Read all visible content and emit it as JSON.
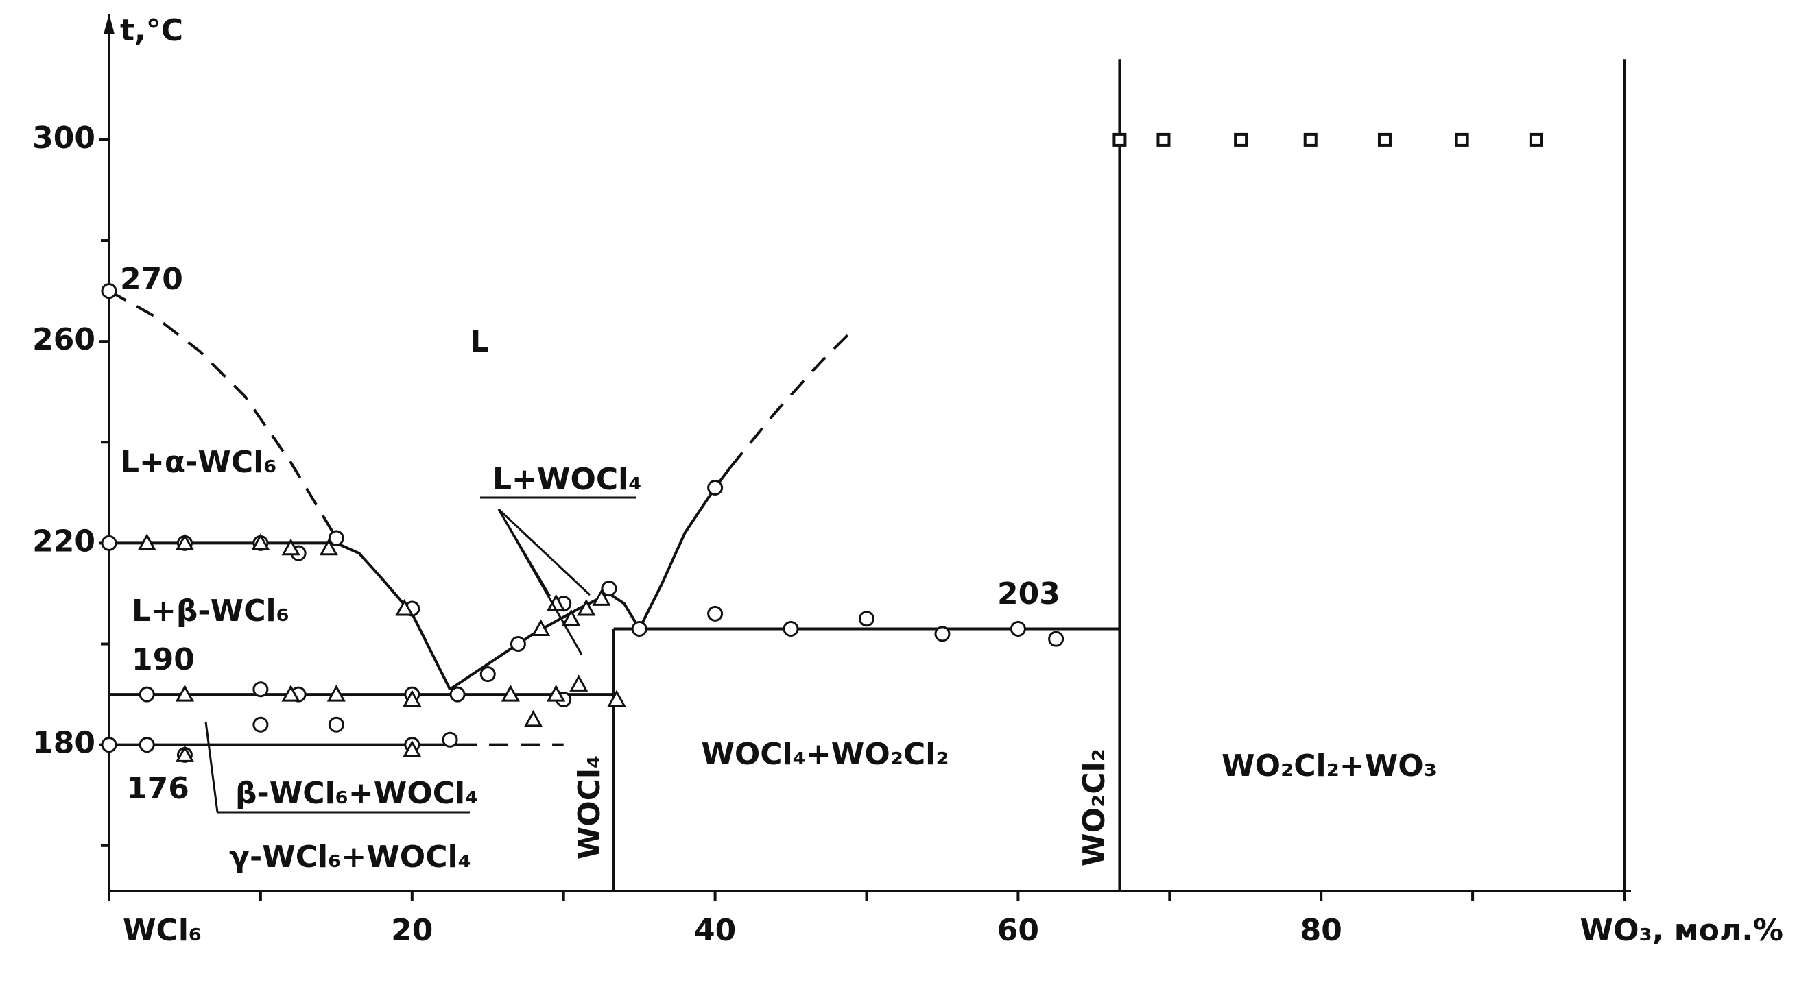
{
  "chart_data": {
    "type": "phase",
    "y_title": "t,°C",
    "xlim": [
      0,
      100
    ],
    "ylim": [
      151,
      325
    ],
    "xticks": [
      {
        "value": 0,
        "label": "WCl₆"
      },
      20,
      40,
      60,
      80,
      {
        "value": 100,
        "label": "WO₃, мол.%"
      }
    ],
    "xminor_ticks": [
      10,
      30,
      50,
      70,
      90
    ],
    "yticks": [
      180,
      220,
      260,
      300
    ],
    "yminor_ticks": [
      160,
      200,
      240,
      280
    ],
    "curves": [
      {
        "style": "dashed",
        "x": [
          0,
          3,
          6,
          9,
          12,
          15
        ],
        "y": [
          270,
          265,
          258,
          249,
          236,
          221
        ]
      },
      {
        "style": "solid",
        "x": [
          0,
          15
        ],
        "y": [
          220,
          220
        ]
      },
      {
        "style": "solid",
        "x": [
          15,
          16.5,
          18,
          20,
          21.5,
          22.5
        ],
        "y": [
          220,
          218,
          213,
          206,
          197,
          191
        ]
      },
      {
        "style": "solid",
        "x": [
          0,
          33.3
        ],
        "y": [
          190,
          190
        ]
      },
      {
        "style": "solid",
        "x": [
          0,
          23
        ],
        "y": [
          180,
          180
        ]
      },
      {
        "style": "dashed",
        "x": [
          23,
          30
        ],
        "y": [
          180,
          180
        ]
      },
      {
        "style": "solid",
        "x": [
          22.5,
          25,
          28,
          31,
          33,
          34,
          35
        ],
        "y": [
          191,
          196,
          202,
          207,
          210,
          208,
          203
        ]
      },
      {
        "style": "solid",
        "x": [
          35,
          36.5,
          38,
          40,
          41
        ],
        "y": [
          203,
          212,
          222,
          231,
          235
        ]
      },
      {
        "style": "dashed",
        "x": [
          41,
          44,
          47,
          49
        ],
        "y": [
          235,
          246,
          256,
          262
        ]
      },
      {
        "style": "solid",
        "x": [
          33.3,
          66.7
        ],
        "y": [
          203,
          203
        ]
      },
      {
        "style": "solid",
        "x": [
          33.3,
          33.3
        ],
        "y": [
          151,
          203
        ]
      },
      {
        "style": "solid",
        "x": [
          66.7,
          66.7
        ],
        "y": [
          151,
          316
        ]
      },
      {
        "style": "solid",
        "x": [
          100,
          100
        ],
        "y": [
          151,
          316
        ]
      }
    ],
    "series": [
      {
        "marker": "circle",
        "x": [
          0,
          0,
          5,
          10,
          12.5,
          15,
          20,
          23,
          25,
          27,
          30,
          30,
          33,
          35,
          40,
          45,
          50,
          55,
          60,
          62.5,
          40,
          2.5,
          10,
          12.5,
          20,
          0,
          2.5,
          5,
          10,
          15,
          20,
          22.5
        ],
        "y": [
          270,
          220,
          220,
          220,
          218,
          221,
          207,
          190,
          194,
          200,
          208,
          189,
          211,
          203,
          206,
          203,
          205,
          202,
          203,
          201,
          231,
          190,
          191,
          190,
          190,
          180,
          180,
          178,
          184,
          184,
          180,
          181
        ]
      },
      {
        "marker": "triangle",
        "x": [
          2.5,
          5,
          10,
          12,
          14.5,
          19.5,
          5,
          12,
          15,
          20,
          26.5,
          28,
          29.5,
          31,
          33.5,
          5,
          20,
          28.5,
          29.5,
          30.5,
          31.5,
          32.5
        ],
        "y": [
          220,
          220,
          220,
          219,
          219,
          207,
          190,
          190,
          190,
          189,
          190,
          185,
          190,
          192,
          189,
          178,
          179,
          203,
          208,
          205,
          207,
          209
        ]
      },
      {
        "marker": "square",
        "x": [
          66.7,
          69.6,
          74.7,
          79.3,
          84.2,
          89.3,
          94.2
        ],
        "y": [
          300,
          300,
          300,
          300,
          300,
          300,
          300
        ]
      }
    ],
    "annotations": [
      "L",
      "L+α-WCl₆",
      "L+β-WCl₆",
      "L+WOCl₄",
      "β-WCl₆+WOCl₄",
      "γ-WCl₆+WOCl₄",
      "WOCl₄",
      "WOCl₄+WO₂Cl₂",
      "WO₂Cl₂",
      "WO₂Cl₂+WO₃",
      "270",
      "190",
      "176",
      "203"
    ]
  }
}
